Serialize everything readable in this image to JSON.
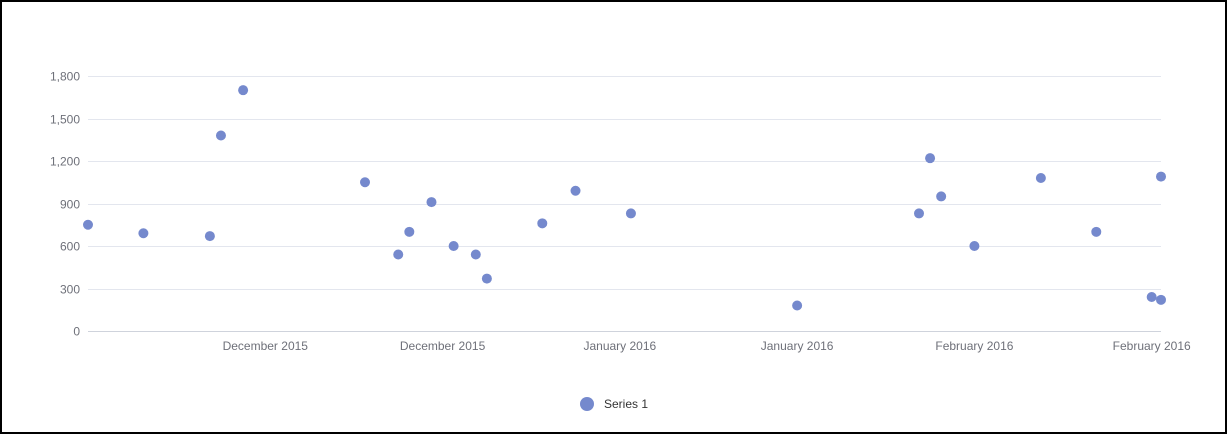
{
  "chart_data": {
    "type": "scatter",
    "title": "",
    "xlabel": "",
    "ylabel": "",
    "x_tick_labels": [
      "December 2015",
      "December 2015",
      "January 2016",
      "January 2016",
      "February 2016",
      "February 2016"
    ],
    "x_tick_dates": [
      "2015-12-11",
      "2015-12-27",
      "2016-01-12",
      "2016-01-28",
      "2016-02-13",
      "2016-02-29"
    ],
    "xlim": [
      "2015-11-25",
      "2016-03-04"
    ],
    "y_ticks": [
      0,
      300,
      600,
      900,
      1200,
      1500,
      1800
    ],
    "y_tick_labels": [
      "0",
      "300",
      "600",
      "900",
      "1,200",
      "1,500",
      "1,800"
    ],
    "ylim": [
      0,
      1800
    ],
    "grid": true,
    "legend_position": "bottom-center",
    "series": [
      {
        "name": "Series 1",
        "color": "#7589cd",
        "points": [
          {
            "x": "2015-11-25",
            "y": 750
          },
          {
            "x": "2015-11-30",
            "y": 690
          },
          {
            "x": "2015-12-06",
            "y": 670
          },
          {
            "x": "2015-12-07",
            "y": 1380
          },
          {
            "x": "2015-12-09",
            "y": 1700
          },
          {
            "x": "2015-12-20",
            "y": 1050
          },
          {
            "x": "2015-12-23",
            "y": 540
          },
          {
            "x": "2015-12-24",
            "y": 700
          },
          {
            "x": "2015-12-26",
            "y": 910
          },
          {
            "x": "2015-12-28",
            "y": 600
          },
          {
            "x": "2015-12-30",
            "y": 540
          },
          {
            "x": "2015-12-31",
            "y": 370
          },
          {
            "x": "2016-01-05",
            "y": 760
          },
          {
            "x": "2016-01-08",
            "y": 990
          },
          {
            "x": "2016-01-13",
            "y": 830
          },
          {
            "x": "2016-01-28",
            "y": 180
          },
          {
            "x": "2016-02-08",
            "y": 830
          },
          {
            "x": "2016-02-09",
            "y": 1220
          },
          {
            "x": "2016-02-10",
            "y": 950
          },
          {
            "x": "2016-02-13",
            "y": 600
          },
          {
            "x": "2016-02-19",
            "y": 1080
          },
          {
            "x": "2016-02-24",
            "y": 700
          },
          {
            "x": "2016-02-29",
            "y": 240
          },
          {
            "x": "2016-03-07",
            "y": 220
          },
          {
            "x": "2016-03-09",
            "y": 1090
          }
        ]
      }
    ]
  }
}
